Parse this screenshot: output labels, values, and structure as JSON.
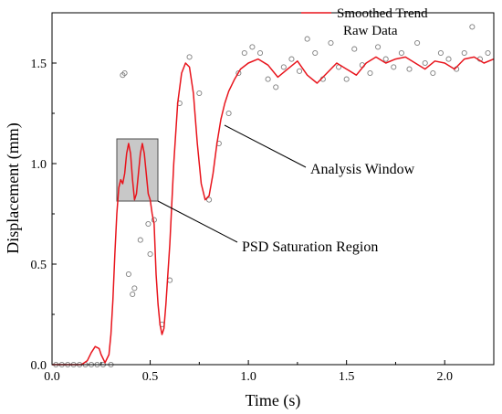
{
  "chart_data": {
    "type": "scatter",
    "xlabel": "Time (s)",
    "ylabel": "Displacement (mm)",
    "xlim": [
      0,
      2.25
    ],
    "ylim": [
      0,
      1.75
    ],
    "xticks": [
      "0.0",
      "0.5",
      "1.0",
      "1.5",
      "2.0"
    ],
    "xtick_values": [
      0,
      0.5,
      1.0,
      1.5,
      2.0
    ],
    "yticks": [
      "0.0",
      "0.5",
      "1.0",
      "1.5"
    ],
    "ytick_values": [
      0,
      0.5,
      1.0,
      1.5
    ],
    "grid": false,
    "legend_position": "top-right",
    "legend": [
      {
        "label": "Smoothed Trend",
        "marker": "line",
        "color": "#e8141c"
      },
      {
        "label": "Raw Data",
        "marker": "circle",
        "color": "#7f7f7f"
      }
    ],
    "series": [
      {
        "name": "Smoothed Trend",
        "kind": "line",
        "color": "#e8141c",
        "x": [
          0,
          0.05,
          0.1,
          0.15,
          0.18,
          0.2,
          0.22,
          0.24,
          0.25,
          0.27,
          0.29,
          0.3,
          0.31,
          0.32,
          0.33,
          0.34,
          0.35,
          0.36,
          0.37,
          0.38,
          0.39,
          0.4,
          0.41,
          0.42,
          0.43,
          0.44,
          0.45,
          0.46,
          0.47,
          0.48,
          0.49,
          0.5,
          0.51,
          0.52,
          0.53,
          0.54,
          0.55,
          0.56,
          0.57,
          0.58,
          0.6,
          0.62,
          0.64,
          0.66,
          0.68,
          0.7,
          0.72,
          0.74,
          0.76,
          0.78,
          0.8,
          0.82,
          0.84,
          0.86,
          0.88,
          0.9,
          0.93,
          0.96,
          1.0,
          1.05,
          1.1,
          1.15,
          1.2,
          1.25,
          1.3,
          1.35,
          1.4,
          1.45,
          1.5,
          1.55,
          1.6,
          1.65,
          1.7,
          1.75,
          1.8,
          1.85,
          1.9,
          1.95,
          2.0,
          2.05,
          2.1,
          2.15,
          2.2,
          2.25
        ],
        "y": [
          0,
          0,
          0,
          0,
          0.02,
          0.06,
          0.09,
          0.08,
          0.05,
          0.01,
          0.05,
          0.15,
          0.32,
          0.55,
          0.75,
          0.88,
          0.92,
          0.9,
          0.95,
          1.05,
          1.1,
          1.05,
          0.92,
          0.82,
          0.85,
          0.95,
          1.05,
          1.1,
          1.05,
          0.95,
          0.85,
          0.82,
          0.75,
          0.7,
          0.45,
          0.3,
          0.2,
          0.15,
          0.18,
          0.3,
          0.6,
          1.0,
          1.3,
          1.45,
          1.5,
          1.48,
          1.35,
          1.1,
          0.9,
          0.82,
          0.84,
          0.95,
          1.1,
          1.22,
          1.3,
          1.36,
          1.42,
          1.47,
          1.5,
          1.52,
          1.49,
          1.43,
          1.47,
          1.51,
          1.44,
          1.4,
          1.45,
          1.5,
          1.47,
          1.44,
          1.5,
          1.53,
          1.5,
          1.52,
          1.53,
          1.5,
          1.47,
          1.51,
          1.5,
          1.47,
          1.52,
          1.53,
          1.5,
          1.52
        ]
      },
      {
        "name": "Raw Data",
        "kind": "scatter",
        "color": "#7f7f7f",
        "x": [
          0.02,
          0.05,
          0.08,
          0.11,
          0.14,
          0.17,
          0.2,
          0.23,
          0.26,
          0.3,
          0.36,
          0.37,
          0.38,
          0.39,
          0.41,
          0.42,
          0.45,
          0.47,
          0.48,
          0.49,
          0.5,
          0.52,
          0.56,
          0.6,
          0.65,
          0.7,
          0.75,
          0.8,
          0.85,
          0.9,
          0.95,
          0.98,
          1.02,
          1.06,
          1.1,
          1.14,
          1.18,
          1.22,
          1.26,
          1.3,
          1.34,
          1.38,
          1.42,
          1.46,
          1.5,
          1.54,
          1.58,
          1.62,
          1.66,
          1.7,
          1.74,
          1.78,
          1.82,
          1.86,
          1.9,
          1.94,
          1.98,
          2.02,
          2.06,
          2.1,
          2.14,
          2.18,
          2.22
        ],
        "y": [
          0,
          0,
          0,
          0,
          0,
          0,
          0,
          0,
          0,
          0,
          1.44,
          1.45,
          1.1,
          0.45,
          0.35,
          0.38,
          0.62,
          0.9,
          1.05,
          0.7,
          0.55,
          0.72,
          0.2,
          0.42,
          1.3,
          1.53,
          1.35,
          0.82,
          1.1,
          1.25,
          1.45,
          1.55,
          1.58,
          1.55,
          1.42,
          1.38,
          1.48,
          1.52,
          1.46,
          1.62,
          1.55,
          1.42,
          1.6,
          1.48,
          1.42,
          1.57,
          1.49,
          1.45,
          1.58,
          1.52,
          1.48,
          1.55,
          1.47,
          1.6,
          1.5,
          1.45,
          1.55,
          1.52,
          1.47,
          1.55,
          1.68,
          1.52,
          1.55
        ]
      }
    ],
    "annotations": [
      {
        "text": "Analysis Window",
        "target_x": 0.86,
        "target_y": 1.18
      },
      {
        "text": "PSD Saturation Region",
        "box_x": [
          0.33,
          0.52
        ],
        "box_y": [
          0.8,
          1.12
        ]
      }
    ]
  }
}
